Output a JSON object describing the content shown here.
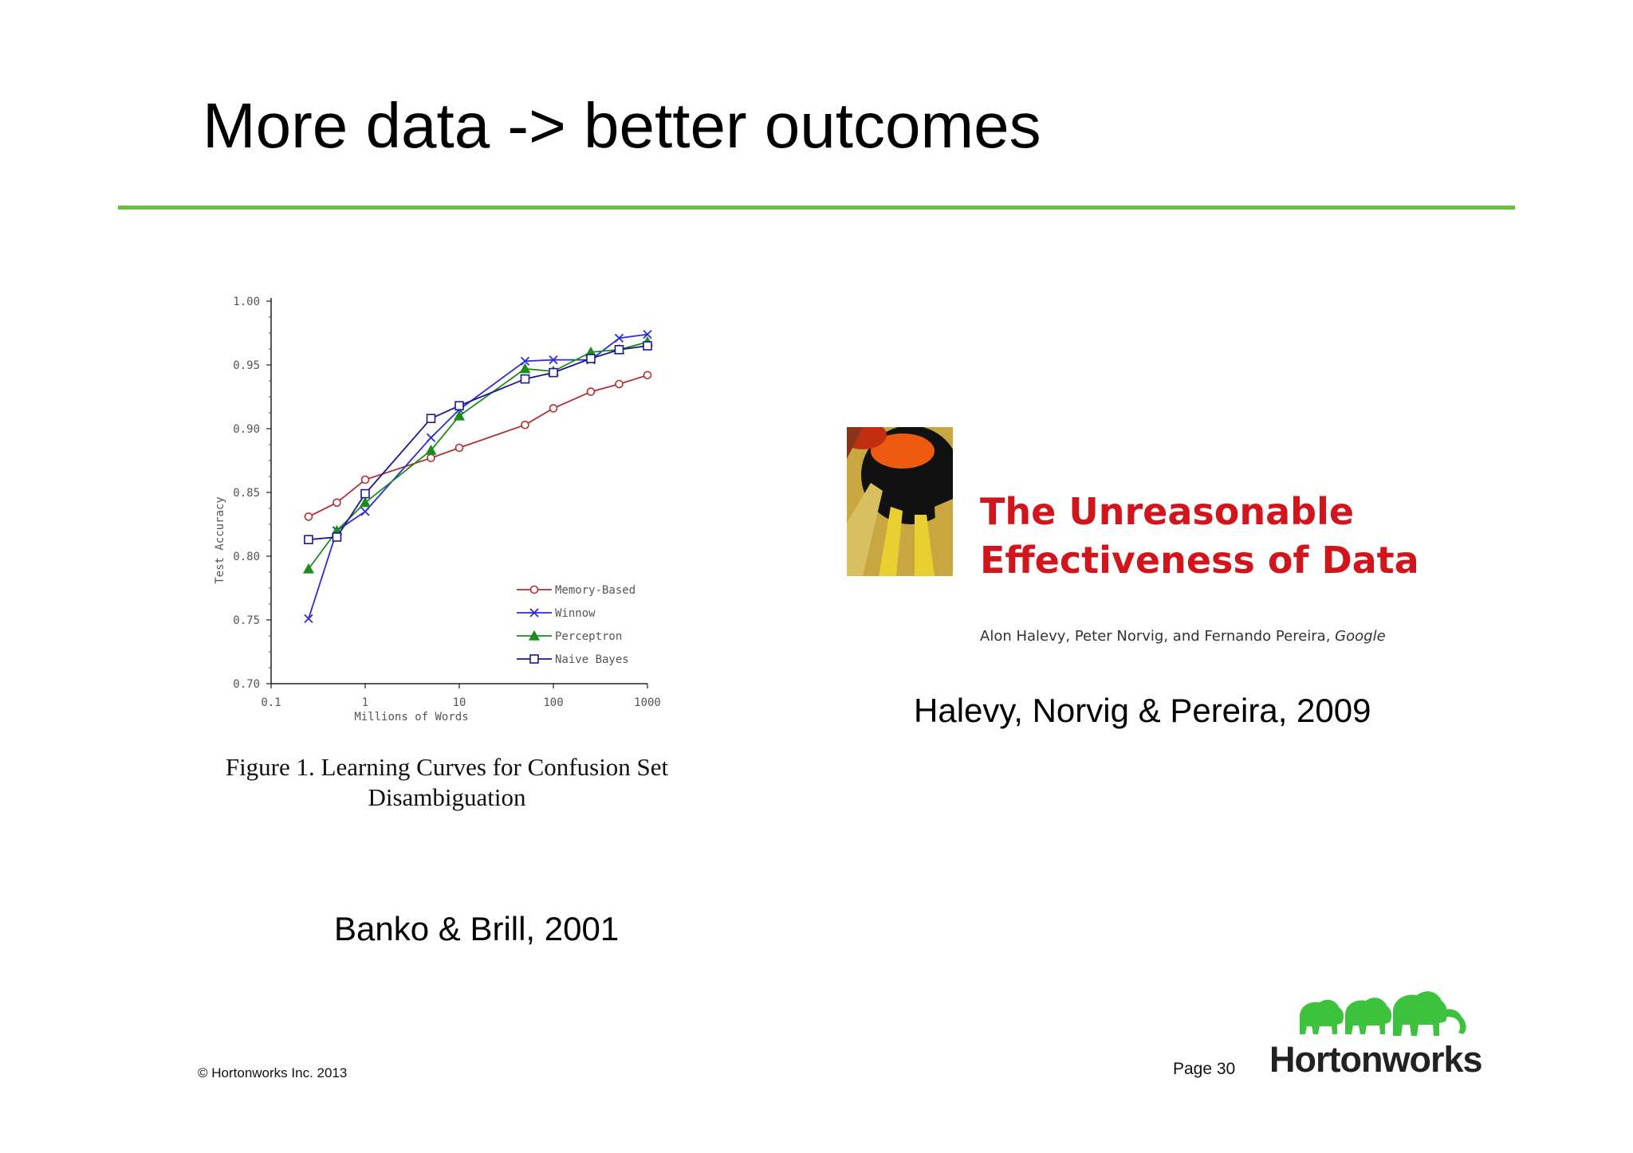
{
  "slide": {
    "title": "More data -> better outcomes",
    "accent_color": "#6abf3f"
  },
  "left_figure": {
    "caption": "Figure 1. Learning Curves for Confusion Set Disambiguation",
    "citation": "Banko & Brill, 2001"
  },
  "chart_data": {
    "type": "line",
    "title": "",
    "xlabel": "Millions of Words",
    "ylabel": "Test Accuracy",
    "x_scale": "log",
    "xlim": [
      0.1,
      1000
    ],
    "ylim": [
      0.7,
      1.0
    ],
    "x_ticks": [
      "0.1",
      "1",
      "10",
      "100",
      "1000"
    ],
    "y_ticks": [
      "0.70",
      "0.75",
      "0.80",
      "0.85",
      "0.90",
      "0.95",
      "1.00"
    ],
    "legend_position": "bottom-right",
    "series": [
      {
        "name": "Memory-Based",
        "marker": "circle",
        "color": "#b03030",
        "points": [
          [
            0.25,
            0.831
          ],
          [
            0.5,
            0.842
          ],
          [
            1,
            0.86
          ],
          [
            5,
            0.877
          ],
          [
            10,
            0.885
          ],
          [
            50,
            0.903
          ],
          [
            100,
            0.916
          ],
          [
            250,
            0.929
          ],
          [
            500,
            0.935
          ],
          [
            1000,
            0.942
          ]
        ]
      },
      {
        "name": "Winnow",
        "marker": "x",
        "color": "#2b2bdc",
        "points": [
          [
            0.25,
            0.751
          ],
          [
            0.5,
            0.82
          ],
          [
            1,
            0.835
          ],
          [
            5,
            0.893
          ],
          [
            10,
            0.915
          ],
          [
            50,
            0.953
          ],
          [
            100,
            0.954
          ],
          [
            250,
            0.954
          ],
          [
            500,
            0.971
          ],
          [
            1000,
            0.974
          ]
        ]
      },
      {
        "name": "Perceptron",
        "marker": "triangle",
        "color": "#1c8c1c",
        "points": [
          [
            0.25,
            0.79
          ],
          [
            0.5,
            0.82
          ],
          [
            1,
            0.842
          ],
          [
            5,
            0.883
          ],
          [
            10,
            0.91
          ],
          [
            50,
            0.947
          ],
          [
            100,
            0.945
          ],
          [
            250,
            0.96
          ],
          [
            500,
            0.962
          ],
          [
            1000,
            0.968
          ]
        ]
      },
      {
        "name": "Naive Bayes",
        "marker": "square",
        "color": "#1a1a8c",
        "points": [
          [
            0.25,
            0.813
          ],
          [
            0.5,
            0.815
          ],
          [
            1,
            0.849
          ],
          [
            5,
            0.908
          ],
          [
            10,
            0.918
          ],
          [
            50,
            0.939
          ],
          [
            100,
            0.944
          ],
          [
            250,
            0.955
          ],
          [
            500,
            0.962
          ],
          [
            1000,
            0.965
          ]
        ]
      }
    ]
  },
  "right_figure": {
    "paper_title_line1": "The Unreasonable",
    "paper_title_line2": "Effectiveness of Data",
    "paper_authors": "Alon Halevy, Peter Norvig, and Fernando Pereira,",
    "paper_affiliation": "Google",
    "title_color": "#d0161c",
    "citation": "Halevy, Norvig & Pereira, 2009"
  },
  "footer": {
    "copyright": "© Hortonworks Inc. 2013",
    "page_number": "Page 30",
    "logo_text": "Hortonworks",
    "logo_color": "#3cc23c"
  }
}
